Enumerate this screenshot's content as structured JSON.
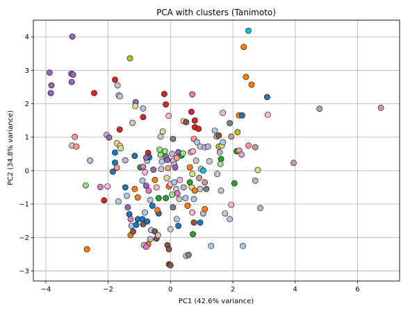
{
  "chart_data": {
    "type": "scatter",
    "title": "PCA with clusters (Tanimoto)",
    "xlabel": "PC1 (42.6% variance)",
    "ylabel": "PC2 (34.8% variance)",
    "xlim": [
      -4.4,
      7.35
    ],
    "ylim": [
      -3.3,
      4.5
    ],
    "xticks": [
      -4,
      -2,
      0,
      2,
      4,
      6
    ],
    "yticks": [
      -3,
      -2,
      -1,
      0,
      1,
      2,
      3,
      4
    ],
    "grid": true,
    "legend": "none",
    "colors": {
      "blue": "#1f77b4",
      "orange": "#ff7f0e",
      "green": "#2ca02c",
      "red": "#d62728",
      "purple": "#9467bd",
      "brown": "#8c564b",
      "pink": "#e377c2",
      "gray": "#7f7f7f",
      "olive": "#bcbd22",
      "cyan": "#17becf",
      "lightblue": "#aec7e8",
      "lightred": "#ff9896",
      "lightgray": "#c7c7c7",
      "lightgreen": "#98df8a",
      "lightpurple": "#c5b0d5",
      "lightpink": "#f7b6d2",
      "lightbrown": "#c49c94",
      "lightolive": "#dbdb8d"
    },
    "points": [
      {
        "x": -3.88,
        "y": 2.93,
        "c": "purple"
      },
      {
        "x": -3.82,
        "y": 2.55,
        "c": "purple"
      },
      {
        "x": -3.84,
        "y": 2.32,
        "c": "purple"
      },
      {
        "x": -3.15,
        "y": 4.01,
        "c": "purple"
      },
      {
        "x": -3.18,
        "y": 2.9,
        "c": "purple"
      },
      {
        "x": -3.13,
        "y": 2.87,
        "c": "purple"
      },
      {
        "x": -3.17,
        "y": 2.65,
        "c": "purple"
      },
      {
        "x": -2.45,
        "y": 2.32,
        "c": "red"
      },
      {
        "x": -1.78,
        "y": 2.72,
        "c": "red"
      },
      {
        "x": -1.7,
        "y": 2.55,
        "c": "lightgray"
      },
      {
        "x": -1.66,
        "y": 2.25,
        "c": "lightgray"
      },
      {
        "x": -1.62,
        "y": 2.22,
        "c": "lightgray"
      },
      {
        "x": -1.3,
        "y": 3.36,
        "c": "olive"
      },
      {
        "x": -1.12,
        "y": 2.05,
        "c": "purple"
      },
      {
        "x": -0.88,
        "y": 1.86,
        "c": "lightblue"
      },
      {
        "x": -1.13,
        "y": 1.93,
        "c": "lightolive"
      },
      {
        "x": -0.88,
        "y": 1.6,
        "c": "red"
      },
      {
        "x": -0.2,
        "y": 2.29,
        "c": "red"
      },
      {
        "x": -0.15,
        "y": 1.98,
        "c": "red"
      },
      {
        "x": -0.06,
        "y": 1.64,
        "c": "lightpink"
      },
      {
        "x": 0.7,
        "y": 2.28,
        "c": "pink"
      },
      {
        "x": 0.67,
        "y": 1.76,
        "c": "red"
      },
      {
        "x": -3.07,
        "y": 1.01,
        "c": "lightred"
      },
      {
        "x": -3.16,
        "y": 0.75,
        "c": "lightgray"
      },
      {
        "x": -3.02,
        "y": 0.72,
        "c": "lightred"
      },
      {
        "x": -2.58,
        "y": 0.3,
        "c": "lightblue"
      },
      {
        "x": -2.72,
        "y": -0.44,
        "c": "lightgreen"
      },
      {
        "x": -2.68,
        "y": -2.35,
        "c": "orange"
      },
      {
        "x": -2.05,
        "y": 1.07,
        "c": "lightpurple"
      },
      {
        "x": -1.97,
        "y": 0.99,
        "c": "purple"
      },
      {
        "x": -1.63,
        "y": 1.23,
        "c": "red"
      },
      {
        "x": -1.72,
        "y": 0.82,
        "c": "lightolive"
      },
      {
        "x": -1.62,
        "y": 0.74,
        "c": "lightolive"
      },
      {
        "x": -1.6,
        "y": 0.67,
        "c": "lightolive"
      },
      {
        "x": -1.78,
        "y": 0.54,
        "c": "blue"
      },
      {
        "x": -1.78,
        "y": 0.24,
        "c": "blue"
      },
      {
        "x": -1.72,
        "y": 0.09,
        "c": "lightred"
      },
      {
        "x": -1.45,
        "y": 0.31,
        "c": "lightpurple"
      },
      {
        "x": -1.85,
        "y": -0.03,
        "c": "blue"
      },
      {
        "x": -2.25,
        "y": -0.49,
        "c": "pink"
      },
      {
        "x": -2.02,
        "y": -0.47,
        "c": "lightpink"
      },
      {
        "x": -2.13,
        "y": -0.89,
        "c": "red"
      },
      {
        "x": -1.67,
        "y": -0.92,
        "c": "lightblue"
      },
      {
        "x": -1.45,
        "y": -0.5,
        "c": "blue"
      },
      {
        "x": -1.4,
        "y": -0.75,
        "c": "lightblue"
      },
      {
        "x": -1.37,
        "y": -1.1,
        "c": "purple"
      },
      {
        "x": -1.32,
        "y": -1.3,
        "c": "blue"
      },
      {
        "x": -1.28,
        "y": -1.45,
        "c": "pink"
      },
      {
        "x": -1.25,
        "y": -1.65,
        "c": "lightblue"
      },
      {
        "x": -1.28,
        "y": -1.93,
        "c": "orange"
      },
      {
        "x": -1.2,
        "y": -1.82,
        "c": "brown"
      },
      {
        "x": -1.1,
        "y": -1.62,
        "c": "blue"
      },
      {
        "x": -1.05,
        "y": -1.45,
        "c": "blue"
      },
      {
        "x": -1.15,
        "y": -0.55,
        "c": "orange"
      },
      {
        "x": -1.05,
        "y": -0.8,
        "c": "orange"
      },
      {
        "x": -1.22,
        "y": 1.43,
        "c": "lightgray"
      },
      {
        "x": -1.15,
        "y": 0.44,
        "c": "blue"
      },
      {
        "x": -0.97,
        "y": 0.1,
        "c": "green"
      },
      {
        "x": -0.88,
        "y": 0.12,
        "c": "pink"
      },
      {
        "x": -0.75,
        "y": 0.3,
        "c": "lightblue"
      },
      {
        "x": -0.72,
        "y": 0.53,
        "c": "red"
      },
      {
        "x": -0.68,
        "y": 0.4,
        "c": "blue"
      },
      {
        "x": -0.78,
        "y": 0.39,
        "c": "purple"
      },
      {
        "x": -0.82,
        "y": -0.05,
        "c": "lightpink"
      },
      {
        "x": -0.9,
        "y": -0.3,
        "c": "lightblue"
      },
      {
        "x": -0.78,
        "y": -0.45,
        "c": "purple"
      },
      {
        "x": -0.7,
        "y": -0.6,
        "c": "pink"
      },
      {
        "x": -0.65,
        "y": -0.88,
        "c": "lightblue"
      },
      {
        "x": -0.58,
        "y": -1.05,
        "c": "blue"
      },
      {
        "x": -0.82,
        "y": -1.25,
        "c": "lightblue"
      },
      {
        "x": -0.9,
        "y": -1.45,
        "c": "blue"
      },
      {
        "x": -0.88,
        "y": -1.6,
        "c": "brown"
      },
      {
        "x": -0.75,
        "y": -1.52,
        "c": "blue"
      },
      {
        "x": -0.62,
        "y": -1.78,
        "c": "lightblue"
      },
      {
        "x": -0.65,
        "y": -2.05,
        "c": "lightpurple"
      },
      {
        "x": -0.72,
        "y": -2.2,
        "c": "orange"
      },
      {
        "x": -0.85,
        "y": -2.23,
        "c": "lightpurple"
      },
      {
        "x": -0.78,
        "y": -2.28,
        "c": "pink"
      },
      {
        "x": -0.5,
        "y": -1.82,
        "c": "brown"
      },
      {
        "x": -0.45,
        "y": -2.03,
        "c": "brown"
      },
      {
        "x": -0.4,
        "y": -1.93,
        "c": "lightgray"
      },
      {
        "x": -0.38,
        "y": -1.28,
        "c": "blue"
      },
      {
        "x": -0.42,
        "y": -1.18,
        "c": "orange"
      },
      {
        "x": -0.38,
        "y": -0.82,
        "c": "green"
      },
      {
        "x": -0.45,
        "y": -0.5,
        "c": "lightpink"
      },
      {
        "x": -0.5,
        "y": -0.28,
        "c": "orange"
      },
      {
        "x": -0.55,
        "y": 0.03,
        "c": "purple"
      },
      {
        "x": -0.32,
        "y": 1.02,
        "c": "lightgray"
      },
      {
        "x": -0.25,
        "y": 1.17,
        "c": "lightolive"
      },
      {
        "x": -0.35,
        "y": 0.63,
        "c": "lightgreen"
      },
      {
        "x": -0.32,
        "y": 0.47,
        "c": "lightgreen"
      },
      {
        "x": -0.28,
        "y": 0.27,
        "c": "lightblue"
      },
      {
        "x": -0.3,
        "y": 0.05,
        "c": "lightgray"
      },
      {
        "x": -0.18,
        "y": 0.58,
        "c": "lightgreen"
      },
      {
        "x": -0.15,
        "y": 0.42,
        "c": "gray"
      },
      {
        "x": -0.1,
        "y": 0.32,
        "c": "purple"
      },
      {
        "x": -0.08,
        "y": 0.08,
        "c": "lightred"
      },
      {
        "x": -0.12,
        "y": -0.22,
        "c": "lightolive"
      },
      {
        "x": -0.05,
        "y": -0.47,
        "c": "orange"
      },
      {
        "x": -0.15,
        "y": -0.82,
        "c": "green"
      },
      {
        "x": -0.1,
        "y": -2.23,
        "c": "brown"
      },
      {
        "x": -0.05,
        "y": -2.35,
        "c": "brown"
      },
      {
        "x": -0.05,
        "y": -2.8,
        "c": "brown"
      },
      {
        "x": 0.0,
        "y": -2.83,
        "c": "brown"
      },
      {
        "x": 0.0,
        "y": -1.75,
        "c": "lightgray"
      },
      {
        "x": 0.05,
        "y": 0.5,
        "c": "lightpurple"
      },
      {
        "x": 0.08,
        "y": 0.95,
        "c": "gray"
      },
      {
        "x": 0.1,
        "y": 0.3,
        "c": "lightpink"
      },
      {
        "x": 0.12,
        "y": 0.18,
        "c": "lightgray"
      },
      {
        "x": 0.15,
        "y": 0.1,
        "c": "purple"
      },
      {
        "x": 0.0,
        "y": -0.4,
        "c": "lightpink"
      },
      {
        "x": 0.05,
        "y": -0.72,
        "c": "lightgreen"
      },
      {
        "x": 0.12,
        "y": -0.35,
        "c": "lightblue"
      },
      {
        "x": 0.18,
        "y": -0.55,
        "c": "lightgray"
      },
      {
        "x": 0.22,
        "y": -0.68,
        "c": "pink"
      },
      {
        "x": 0.08,
        "y": -1.1,
        "c": "gray"
      },
      {
        "x": 0.2,
        "y": -1.45,
        "c": "lightblue"
      },
      {
        "x": 0.25,
        "y": -1.65,
        "c": "blue"
      },
      {
        "x": 0.28,
        "y": -0.85,
        "c": "lightgray"
      },
      {
        "x": 0.25,
        "y": 0.55,
        "c": "purple"
      },
      {
        "x": 0.35,
        "y": 0.45,
        "c": "green"
      },
      {
        "x": 0.4,
        "y": 0.52,
        "c": "lightgreen"
      },
      {
        "x": 0.42,
        "y": 1.48,
        "c": "lightolive"
      },
      {
        "x": 0.5,
        "y": 1.45,
        "c": "brown"
      },
      {
        "x": 0.2,
        "y": 0.38,
        "c": "lightred"
      },
      {
        "x": 0.3,
        "y": -0.28,
        "c": "lightpink"
      },
      {
        "x": 0.42,
        "y": -0.5,
        "c": "lightpurple"
      },
      {
        "x": 0.48,
        "y": -0.82,
        "c": "lightblue"
      },
      {
        "x": 0.55,
        "y": -1.05,
        "c": "orange"
      },
      {
        "x": 0.5,
        "y": -2.55,
        "c": "lightblue"
      },
      {
        "x": 0.58,
        "y": -2.52,
        "c": "gray"
      },
      {
        "x": 0.62,
        "y": 0.1,
        "c": "orange"
      },
      {
        "x": 0.65,
        "y": 0.55,
        "c": "lightred"
      },
      {
        "x": 0.72,
        "y": 0.58,
        "c": "lightpink"
      },
      {
        "x": 0.75,
        "y": 0.95,
        "c": "lightred"
      },
      {
        "x": 0.78,
        "y": 1.3,
        "c": "red"
      },
      {
        "x": 0.78,
        "y": 1.5,
        "c": "red"
      },
      {
        "x": 0.9,
        "y": 1.25,
        "c": "red"
      },
      {
        "x": 0.85,
        "y": 0.85,
        "c": "lightblue"
      },
      {
        "x": 0.95,
        "y": 0.72,
        "c": "lightgray"
      },
      {
        "x": 0.82,
        "y": 0.3,
        "c": "lightgray"
      },
      {
        "x": 0.7,
        "y": -0.1,
        "c": "lightolive"
      },
      {
        "x": 0.62,
        "y": -0.35,
        "c": "green"
      },
      {
        "x": 0.68,
        "y": -0.5,
        "c": "lightolive"
      },
      {
        "x": 0.78,
        "y": -0.6,
        "c": "orange"
      },
      {
        "x": 0.75,
        "y": -0.85,
        "c": "lightblue"
      },
      {
        "x": 0.7,
        "y": -1.25,
        "c": "lightpink"
      },
      {
        "x": 0.75,
        "y": -1.55,
        "c": "brown"
      },
      {
        "x": 0.72,
        "y": -1.9,
        "c": "green"
      },
      {
        "x": 0.95,
        "y": -1.55,
        "c": "blue"
      },
      {
        "x": 1.05,
        "y": -1.28,
        "c": "lightpurple"
      },
      {
        "x": 0.95,
        "y": -0.55,
        "c": "lightgray"
      },
      {
        "x": 0.92,
        "y": -0.22,
        "c": "lightbrown"
      },
      {
        "x": 0.98,
        "y": 0.05,
        "c": "lightblue"
      },
      {
        "x": 1.05,
        "y": 0.0,
        "c": "cyan"
      },
      {
        "x": 1.1,
        "y": -0.35,
        "c": "lightbrown"
      },
      {
        "x": 1.15,
        "y": -0.55,
        "c": "gray"
      },
      {
        "x": 1.1,
        "y": 0.7,
        "c": "lightpurple"
      },
      {
        "x": 1.2,
        "y": 0.72,
        "c": "lightpurple"
      },
      {
        "x": 1.1,
        "y": -1.15,
        "c": "orange"
      },
      {
        "x": 1.25,
        "y": 0.28,
        "c": "lightgray"
      },
      {
        "x": 1.3,
        "y": -2.25,
        "c": "lightblue"
      },
      {
        "x": 1.42,
        "y": 1.2,
        "c": "lightblue"
      },
      {
        "x": 1.48,
        "y": 1.02,
        "c": "lightbrown"
      },
      {
        "x": 1.55,
        "y": 1.05,
        "c": "brown"
      },
      {
        "x": 1.55,
        "y": 0.72,
        "c": "olive"
      },
      {
        "x": 1.58,
        "y": 0.55,
        "c": "lightpurple"
      },
      {
        "x": 1.62,
        "y": 0.35,
        "c": "green"
      },
      {
        "x": 1.6,
        "y": 0.2,
        "c": "lightgreen"
      },
      {
        "x": 1.5,
        "y": -0.1,
        "c": "lightgray"
      },
      {
        "x": 1.62,
        "y": -0.6,
        "c": "lightgray"
      },
      {
        "x": 1.65,
        "y": 0.75,
        "c": "lightolive"
      },
      {
        "x": 1.68,
        "y": 0.85,
        "c": "lightblue"
      },
      {
        "x": 1.68,
        "y": 1.73,
        "c": "lightpink"
      },
      {
        "x": 1.75,
        "y": -1.28,
        "c": "lightgray"
      },
      {
        "x": 1.9,
        "y": 1.42,
        "c": "gray"
      },
      {
        "x": 1.95,
        "y": 1.02,
        "c": "lightbrown"
      },
      {
        "x": 1.9,
        "y": -1.45,
        "c": "lightblue"
      },
      {
        "x": 1.95,
        "y": -1.02,
        "c": "lightpink"
      },
      {
        "x": 2.05,
        "y": -0.38,
        "c": "green"
      },
      {
        "x": 2.12,
        "y": 0.58,
        "c": "green"
      },
      {
        "x": 2.15,
        "y": 1.15,
        "c": "olive"
      },
      {
        "x": 2.2,
        "y": 0.6,
        "c": "lightred"
      },
      {
        "x": 2.28,
        "y": 0.48,
        "c": "lightpurple"
      },
      {
        "x": 2.2,
        "y": 1.65,
        "c": "orange"
      },
      {
        "x": 2.3,
        "y": 1.65,
        "c": "blue"
      },
      {
        "x": 2.35,
        "y": 3.7,
        "c": "orange"
      },
      {
        "x": 2.5,
        "y": 4.18,
        "c": "cyan"
      },
      {
        "x": 2.42,
        "y": 2.8,
        "c": "orange"
      },
      {
        "x": 2.6,
        "y": 2.57,
        "c": "orange"
      },
      {
        "x": 2.5,
        "y": 0.75,
        "c": "lightred"
      },
      {
        "x": 2.32,
        "y": -2.25,
        "c": "lightblue"
      },
      {
        "x": 2.72,
        "y": 0.7,
        "c": "lightbrown"
      },
      {
        "x": 2.8,
        "y": 0.02,
        "c": "lightolive"
      },
      {
        "x": 2.72,
        "y": -0.3,
        "c": "lightpurple"
      },
      {
        "x": 2.88,
        "y": -1.12,
        "c": "lightpurple"
      },
      {
        "x": 3.1,
        "y": 2.2,
        "c": "blue"
      },
      {
        "x": 3.12,
        "y": 1.67,
        "c": "lightpink"
      },
      {
        "x": 3.95,
        "y": 0.23,
        "c": "lightbrown"
      },
      {
        "x": 4.78,
        "y": 1.85,
        "c": "lightbrown"
      },
      {
        "x": 6.75,
        "y": 1.88,
        "c": "lightbrown"
      }
    ]
  }
}
